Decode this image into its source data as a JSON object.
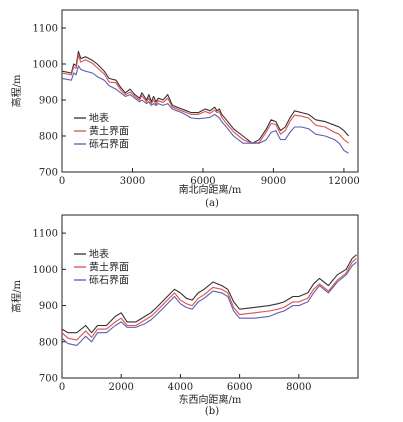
{
  "chart_data": [
    {
      "type": "line",
      "caption": "(a)",
      "xlabel": "南北向距离/m",
      "ylabel": "高程/m",
      "xlim": [
        0,
        12600
      ],
      "ylim": [
        700,
        1150
      ],
      "xticks": [
        0,
        3000,
        6000,
        9000,
        12000
      ],
      "yticks": [
        700,
        800,
        900,
        1000,
        1100
      ],
      "grid": false,
      "legend": "middle-left",
      "series": [
        {
          "name": "地表",
          "color": "#333333",
          "x": [
            0,
            400,
            500,
            600,
            700,
            800,
            1000,
            1300,
            1500,
            1800,
            2000,
            2300,
            2500,
            2700,
            2900,
            3100,
            3300,
            3400,
            3600,
            3700,
            3800,
            3900,
            4000,
            4100,
            4300,
            4500,
            4700,
            4900,
            5100,
            5300,
            5500,
            5800,
            6100,
            6300,
            6500,
            6600,
            6700,
            6800,
            7000,
            7300,
            7700,
            8100,
            8400,
            8700,
            8900,
            9100,
            9300,
            9500,
            9700,
            9900,
            10200,
            10500,
            10800,
            11200,
            11600,
            11800,
            12000,
            12200
          ],
          "y": [
            980,
            975,
            1000,
            995,
            1035,
            1015,
            1020,
            1010,
            1000,
            980,
            960,
            955,
            935,
            920,
            930,
            915,
            905,
            920,
            900,
            915,
            895,
            910,
            895,
            905,
            900,
            915,
            885,
            880,
            875,
            870,
            865,
            865,
            875,
            870,
            880,
            870,
            875,
            860,
            845,
            820,
            800,
            780,
            790,
            820,
            845,
            840,
            815,
            825,
            850,
            870,
            865,
            860,
            845,
            840,
            830,
            825,
            815,
            800
          ],
          "values": [
            980,
            975,
            1000,
            995,
            1035,
            1015,
            1020,
            1010,
            1000,
            980,
            960,
            955,
            935,
            920,
            930,
            915,
            905,
            920,
            900,
            915,
            895,
            910,
            895,
            905,
            900,
            915,
            885,
            880,
            875,
            870,
            865,
            865,
            875,
            870,
            880,
            870,
            875,
            860,
            845,
            820,
            800,
            780,
            790,
            820,
            845,
            840,
            815,
            825,
            850,
            870,
            865,
            860,
            845,
            840,
            830,
            825,
            815,
            800
          ]
        },
        {
          "name": "黄土界面",
          "color": "#e0504a",
          "x": [
            0,
            400,
            500,
            600,
            700,
            800,
            1000,
            1300,
            1500,
            1800,
            2000,
            2300,
            2500,
            2700,
            2900,
            3100,
            3300,
            3400,
            3600,
            3700,
            3800,
            3900,
            4000,
            4100,
            4300,
            4500,
            4700,
            4900,
            5100,
            5300,
            5500,
            5800,
            6100,
            6300,
            6500,
            6600,
            6700,
            6800,
            7000,
            7300,
            7700,
            8100,
            8400,
            8700,
            8900,
            9100,
            9300,
            9500,
            9700,
            9900,
            10200,
            10500,
            10800,
            11200,
            11600,
            11800,
            12000,
            12200
          ],
          "y": [
            975,
            970,
            992,
            988,
            1025,
            1005,
            1012,
            1002,
            990,
            972,
            950,
            948,
            928,
            915,
            922,
            910,
            900,
            912,
            895,
            905,
            890,
            900,
            888,
            898,
            893,
            905,
            880,
            875,
            870,
            865,
            860,
            860,
            868,
            863,
            872,
            865,
            868,
            852,
            835,
            812,
            790,
            780,
            782,
            812,
            835,
            832,
            805,
            815,
            840,
            858,
            855,
            850,
            830,
            825,
            810,
            805,
            790,
            780
          ],
          "values": [
            975,
            970,
            992,
            988,
            1025,
            1005,
            1012,
            1002,
            990,
            972,
            950,
            948,
            928,
            915,
            922,
            910,
            900,
            912,
            895,
            905,
            890,
            900,
            888,
            898,
            893,
            905,
            880,
            875,
            870,
            865,
            860,
            860,
            868,
            863,
            872,
            865,
            868,
            852,
            835,
            812,
            790,
            780,
            782,
            812,
            835,
            832,
            805,
            815,
            840,
            858,
            855,
            850,
            830,
            825,
            810,
            805,
            790,
            780
          ]
        },
        {
          "name": "砾石界面",
          "color": "#5b5fb5",
          "x": [
            0,
            400,
            500,
            600,
            700,
            800,
            1000,
            1300,
            1500,
            1800,
            2000,
            2300,
            2500,
            2700,
            2900,
            3100,
            3300,
            3400,
            3600,
            3700,
            3800,
            3900,
            4000,
            4100,
            4300,
            4500,
            4700,
            4900,
            5100,
            5300,
            5500,
            5800,
            6100,
            6300,
            6500,
            6600,
            6700,
            6800,
            7000,
            7300,
            7700,
            8100,
            8400,
            8700,
            8900,
            9100,
            9300,
            9500,
            9700,
            9900,
            10200,
            10500,
            10800,
            11200,
            11600,
            11800,
            12000,
            12200
          ],
          "y": [
            960,
            955,
            975,
            970,
            995,
            985,
            980,
            975,
            965,
            955,
            940,
            930,
            920,
            910,
            915,
            905,
            895,
            900,
            890,
            895,
            885,
            890,
            885,
            890,
            885,
            890,
            875,
            870,
            865,
            858,
            850,
            848,
            850,
            852,
            860,
            855,
            850,
            840,
            825,
            800,
            780,
            780,
            780,
            790,
            810,
            815,
            790,
            790,
            810,
            825,
            825,
            820,
            805,
            800,
            790,
            780,
            760,
            752
          ],
          "values": [
            960,
            955,
            975,
            970,
            995,
            985,
            980,
            975,
            965,
            955,
            940,
            930,
            920,
            910,
            915,
            905,
            895,
            900,
            890,
            895,
            885,
            890,
            885,
            890,
            885,
            890,
            875,
            870,
            865,
            858,
            850,
            848,
            850,
            852,
            860,
            855,
            850,
            840,
            825,
            800,
            780,
            780,
            780,
            790,
            810,
            815,
            790,
            790,
            810,
            825,
            825,
            820,
            805,
            800,
            790,
            780,
            760,
            752
          ]
        }
      ]
    },
    {
      "type": "line",
      "caption": "(b)",
      "xlabel": "东西向距离/m",
      "ylabel": "高程/m",
      "xlim": [
        0,
        10000
      ],
      "ylim": [
        700,
        1150
      ],
      "xticks": [
        0,
        2000,
        4000,
        6000,
        8000
      ],
      "yticks": [
        700,
        800,
        900,
        1000,
        1100
      ],
      "grid": false,
      "legend": "top-left",
      "series": [
        {
          "name": "地表",
          "color": "#333333",
          "x": [
            0,
            200,
            500,
            800,
            1000,
            1200,
            1500,
            1800,
            2000,
            2200,
            2500,
            2800,
            3000,
            3200,
            3500,
            3800,
            4000,
            4200,
            4400,
            4600,
            4800,
            5100,
            5400,
            5600,
            5800,
            6000,
            6500,
            7000,
            7300,
            7500,
            7800,
            8000,
            8300,
            8500,
            8700,
            9000,
            9300,
            9600,
            9800,
            9950
          ],
          "y": [
            835,
            825,
            825,
            845,
            825,
            845,
            845,
            870,
            880,
            855,
            855,
            870,
            880,
            895,
            920,
            945,
            935,
            920,
            915,
            935,
            945,
            965,
            955,
            945,
            910,
            890,
            895,
            900,
            905,
            910,
            925,
            925,
            935,
            960,
            975,
            955,
            985,
            1000,
            1030,
            1040
          ],
          "values": [
            835,
            825,
            825,
            845,
            825,
            845,
            845,
            870,
            880,
            855,
            855,
            870,
            880,
            895,
            920,
            945,
            935,
            920,
            915,
            935,
            945,
            965,
            955,
            945,
            910,
            890,
            895,
            900,
            905,
            910,
            925,
            925,
            935,
            960,
            975,
            955,
            985,
            1000,
            1030,
            1040
          ]
        },
        {
          "name": "黄土界面",
          "color": "#e0504a",
          "x": [
            0,
            200,
            500,
            800,
            1000,
            1200,
            1500,
            1800,
            2000,
            2200,
            2500,
            2800,
            3000,
            3200,
            3500,
            3800,
            4000,
            4200,
            4400,
            4600,
            4800,
            5100,
            5400,
            5600,
            5800,
            6000,
            6500,
            7000,
            7300,
            7500,
            7800,
            8000,
            8300,
            8500,
            8700,
            9000,
            9300,
            9600,
            9800,
            9950
          ],
          "y": [
            825,
            810,
            805,
            830,
            812,
            835,
            835,
            855,
            865,
            845,
            845,
            860,
            870,
            885,
            910,
            935,
            915,
            905,
            900,
            920,
            930,
            950,
            945,
            935,
            895,
            875,
            880,
            885,
            890,
            895,
            910,
            910,
            920,
            945,
            960,
            940,
            970,
            990,
            1020,
            1030
          ],
          "values": [
            825,
            810,
            805,
            830,
            812,
            835,
            835,
            855,
            865,
            845,
            845,
            860,
            870,
            885,
            910,
            935,
            915,
            905,
            900,
            920,
            930,
            950,
            945,
            935,
            895,
            875,
            880,
            885,
            890,
            895,
            910,
            910,
            920,
            945,
            960,
            940,
            970,
            990,
            1020,
            1030
          ]
        },
        {
          "name": "砾石界面",
          "color": "#5b5fb5",
          "x": [
            0,
            200,
            500,
            800,
            1000,
            1200,
            1500,
            1800,
            2000,
            2200,
            2500,
            2800,
            3000,
            3200,
            3500,
            3800,
            4000,
            4200,
            4400,
            4600,
            4800,
            5100,
            5400,
            5600,
            5800,
            6000,
            6500,
            7000,
            7300,
            7500,
            7800,
            8000,
            8300,
            8500,
            8700,
            9000,
            9300,
            9600,
            9800,
            9950
          ],
          "y": [
            810,
            795,
            790,
            815,
            800,
            825,
            825,
            845,
            855,
            840,
            840,
            850,
            860,
            875,
            900,
            925,
            905,
            895,
            890,
            910,
            920,
            940,
            935,
            925,
            885,
            865,
            865,
            870,
            880,
            885,
            900,
            900,
            910,
            935,
            955,
            935,
            965,
            985,
            1010,
            1020
          ],
          "values": [
            810,
            795,
            790,
            815,
            800,
            825,
            825,
            845,
            855,
            840,
            840,
            850,
            860,
            875,
            900,
            925,
            905,
            895,
            890,
            910,
            920,
            940,
            935,
            925,
            885,
            865,
            865,
            870,
            880,
            885,
            900,
            900,
            910,
            935,
            955,
            935,
            965,
            985,
            1010,
            1020
          ]
        }
      ]
    }
  ]
}
